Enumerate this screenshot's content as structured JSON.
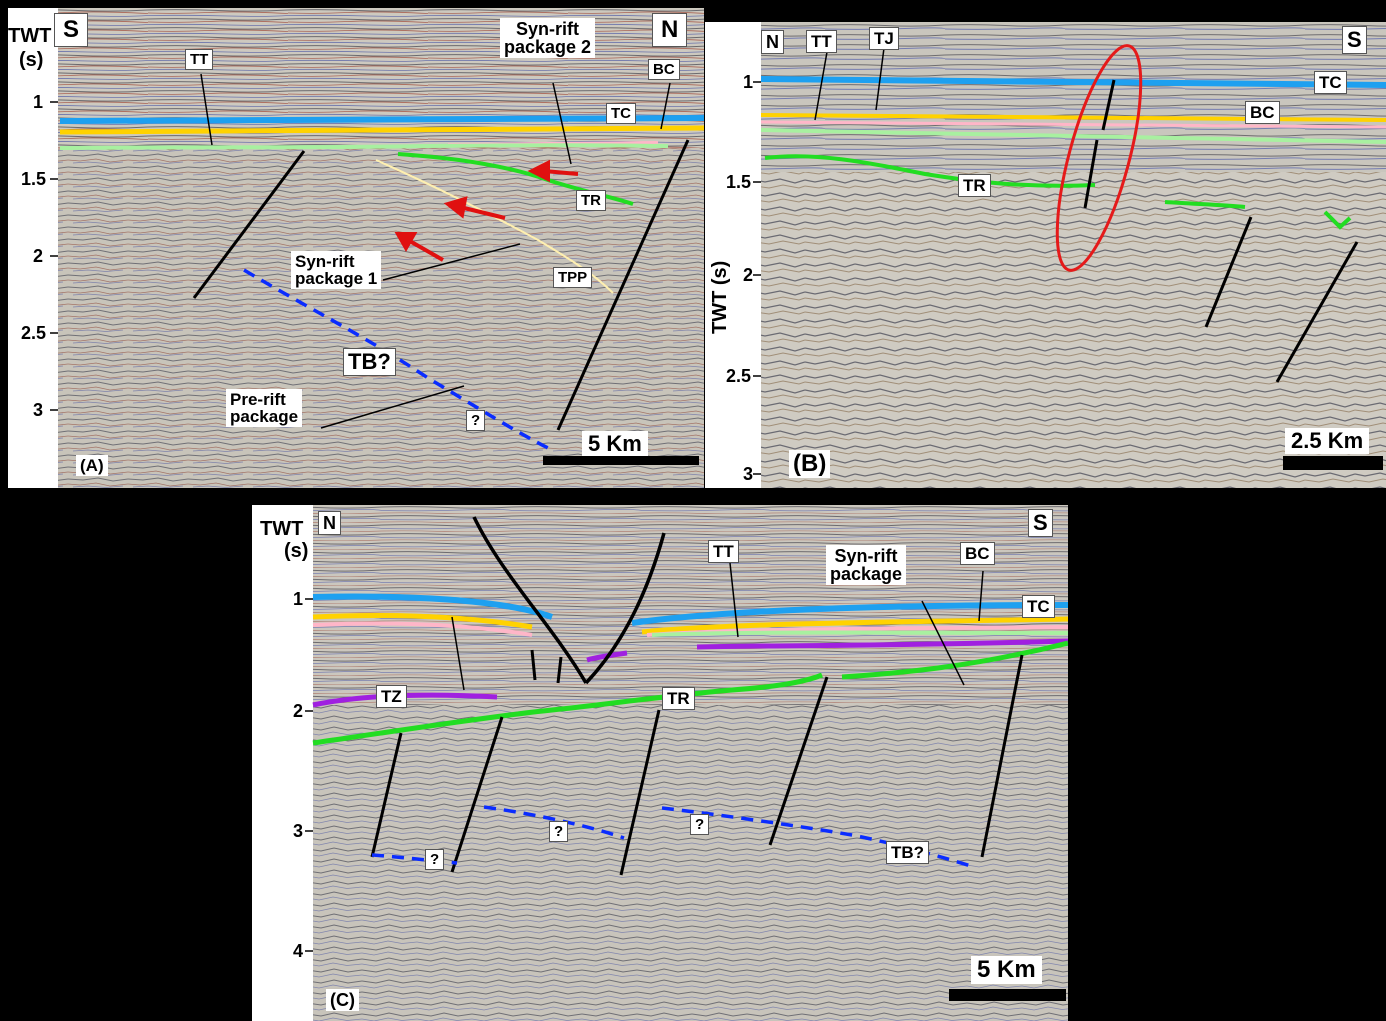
{
  "panels": {
    "a": {
      "axis_title": "TWT",
      "axis_unit": "(s)",
      "ticks": [
        "1",
        "1.5",
        "2",
        "2.5",
        "3"
      ],
      "direction_left": "S",
      "direction_right": "N",
      "panel_label": "(A)",
      "scale_label": "5 Km",
      "labels": {
        "tt": "TT",
        "bc": "BC",
        "tc": "TC",
        "tr": "TR",
        "tpp": "TPP",
        "synrift2": "Syn-rift\npackage 2",
        "synrift1": "Syn-rift\npackage 1",
        "tb": "TB?",
        "prerift": "Pre-rift\npackage",
        "q": "?"
      }
    },
    "b": {
      "axis_title": "TWT (s)",
      "ticks": [
        "1",
        "1.5",
        "2",
        "2.5",
        "3"
      ],
      "direction_left": "N",
      "direction_right": "S",
      "panel_label": "(B)",
      "scale_label": "2.5 Km",
      "labels": {
        "tt": "TT",
        "tj": "TJ",
        "tc": "TC",
        "bc": "BC",
        "tr": "TR"
      }
    },
    "c": {
      "axis_title": "TWT",
      "axis_unit": "(s)",
      "ticks": [
        "1",
        "2",
        "3",
        "4"
      ],
      "direction_left": "N",
      "direction_right": "S",
      "panel_label": "(C)",
      "scale_label": "5 Km",
      "labels": {
        "tt": "TT",
        "synrift": "Syn-rift\npackage",
        "bc": "BC",
        "tc": "TC",
        "tz": "TZ",
        "tr": "TR",
        "q1": "?",
        "q2": "?",
        "q3": "?",
        "tb": "TB?"
      }
    }
  },
  "colors": {
    "tc": "#1ea0f0",
    "bc": "#ffd200",
    "pink": "#ffb6c8",
    "light_green": "#a8f0a0",
    "tr_green": "#22dd22",
    "tz_purple": "#a020e0",
    "tb_blue": "#0a2cff",
    "arrow_red": "#e01010",
    "tpp_line": "#fff0b0",
    "ellipse_red": "#e51a1a"
  }
}
